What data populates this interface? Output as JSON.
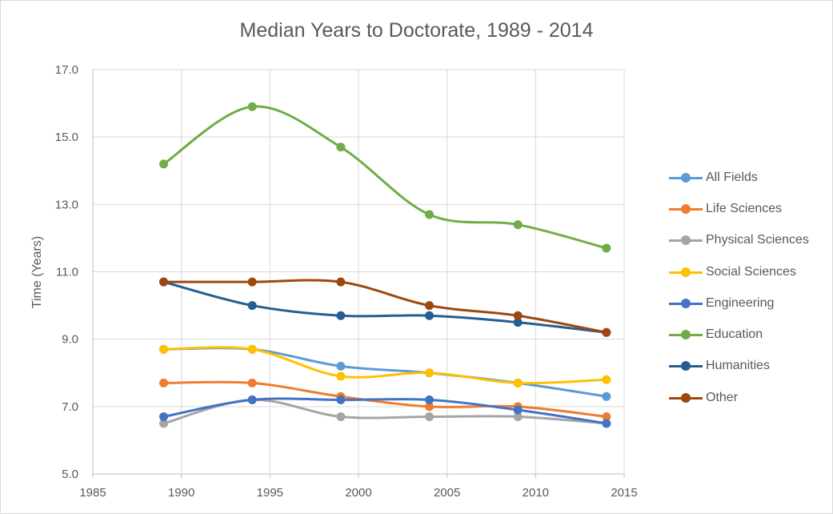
{
  "chart_data": {
    "type": "line",
    "title": "Median Years to Doctorate, 1989 - 2014",
    "xlabel": "",
    "ylabel": "Time (Years)",
    "xlim": [
      1985,
      2015
    ],
    "ylim": [
      5.0,
      17.0
    ],
    "x_ticks": [
      "1985",
      "1990",
      "1995",
      "2000",
      "2005",
      "2010",
      "2015"
    ],
    "y_ticks": [
      "5.0",
      "7.0",
      "9.0",
      "11.0",
      "13.0",
      "15.0",
      "17.0"
    ],
    "grid": true,
    "smooth": true,
    "legend_position": "right",
    "x": [
      1989,
      1994,
      1999,
      2004,
      2009,
      2014
    ],
    "series": [
      {
        "name": "All Fields",
        "color": "#5b9bd5",
        "values": [
          8.7,
          8.7,
          8.2,
          8.0,
          7.7,
          7.3
        ]
      },
      {
        "name": "Life Sciences",
        "color": "#ed7d31",
        "values": [
          7.7,
          7.7,
          7.3,
          7.0,
          7.0,
          6.7
        ]
      },
      {
        "name": "Physical Sciences",
        "color": "#a5a5a5",
        "values": [
          6.5,
          7.2,
          6.7,
          6.7,
          6.7,
          6.5
        ]
      },
      {
        "name": "Social Sciences",
        "color": "#ffc000",
        "values": [
          8.7,
          8.7,
          7.9,
          8.0,
          7.7,
          7.8
        ]
      },
      {
        "name": "Engineering",
        "color": "#4472c4",
        "values": [
          6.7,
          7.2,
          7.2,
          7.2,
          6.9,
          6.5
        ]
      },
      {
        "name": "Education",
        "color": "#70ad47",
        "values": [
          14.2,
          15.9,
          14.7,
          12.7,
          12.4,
          11.7
        ]
      },
      {
        "name": "Humanities",
        "color": "#255e91",
        "values": [
          10.7,
          10.0,
          9.7,
          9.7,
          9.5,
          9.2
        ]
      },
      {
        "name": "Other",
        "color": "#9e480e",
        "values": [
          10.7,
          10.7,
          10.7,
          10.0,
          9.7,
          9.2
        ]
      }
    ]
  }
}
